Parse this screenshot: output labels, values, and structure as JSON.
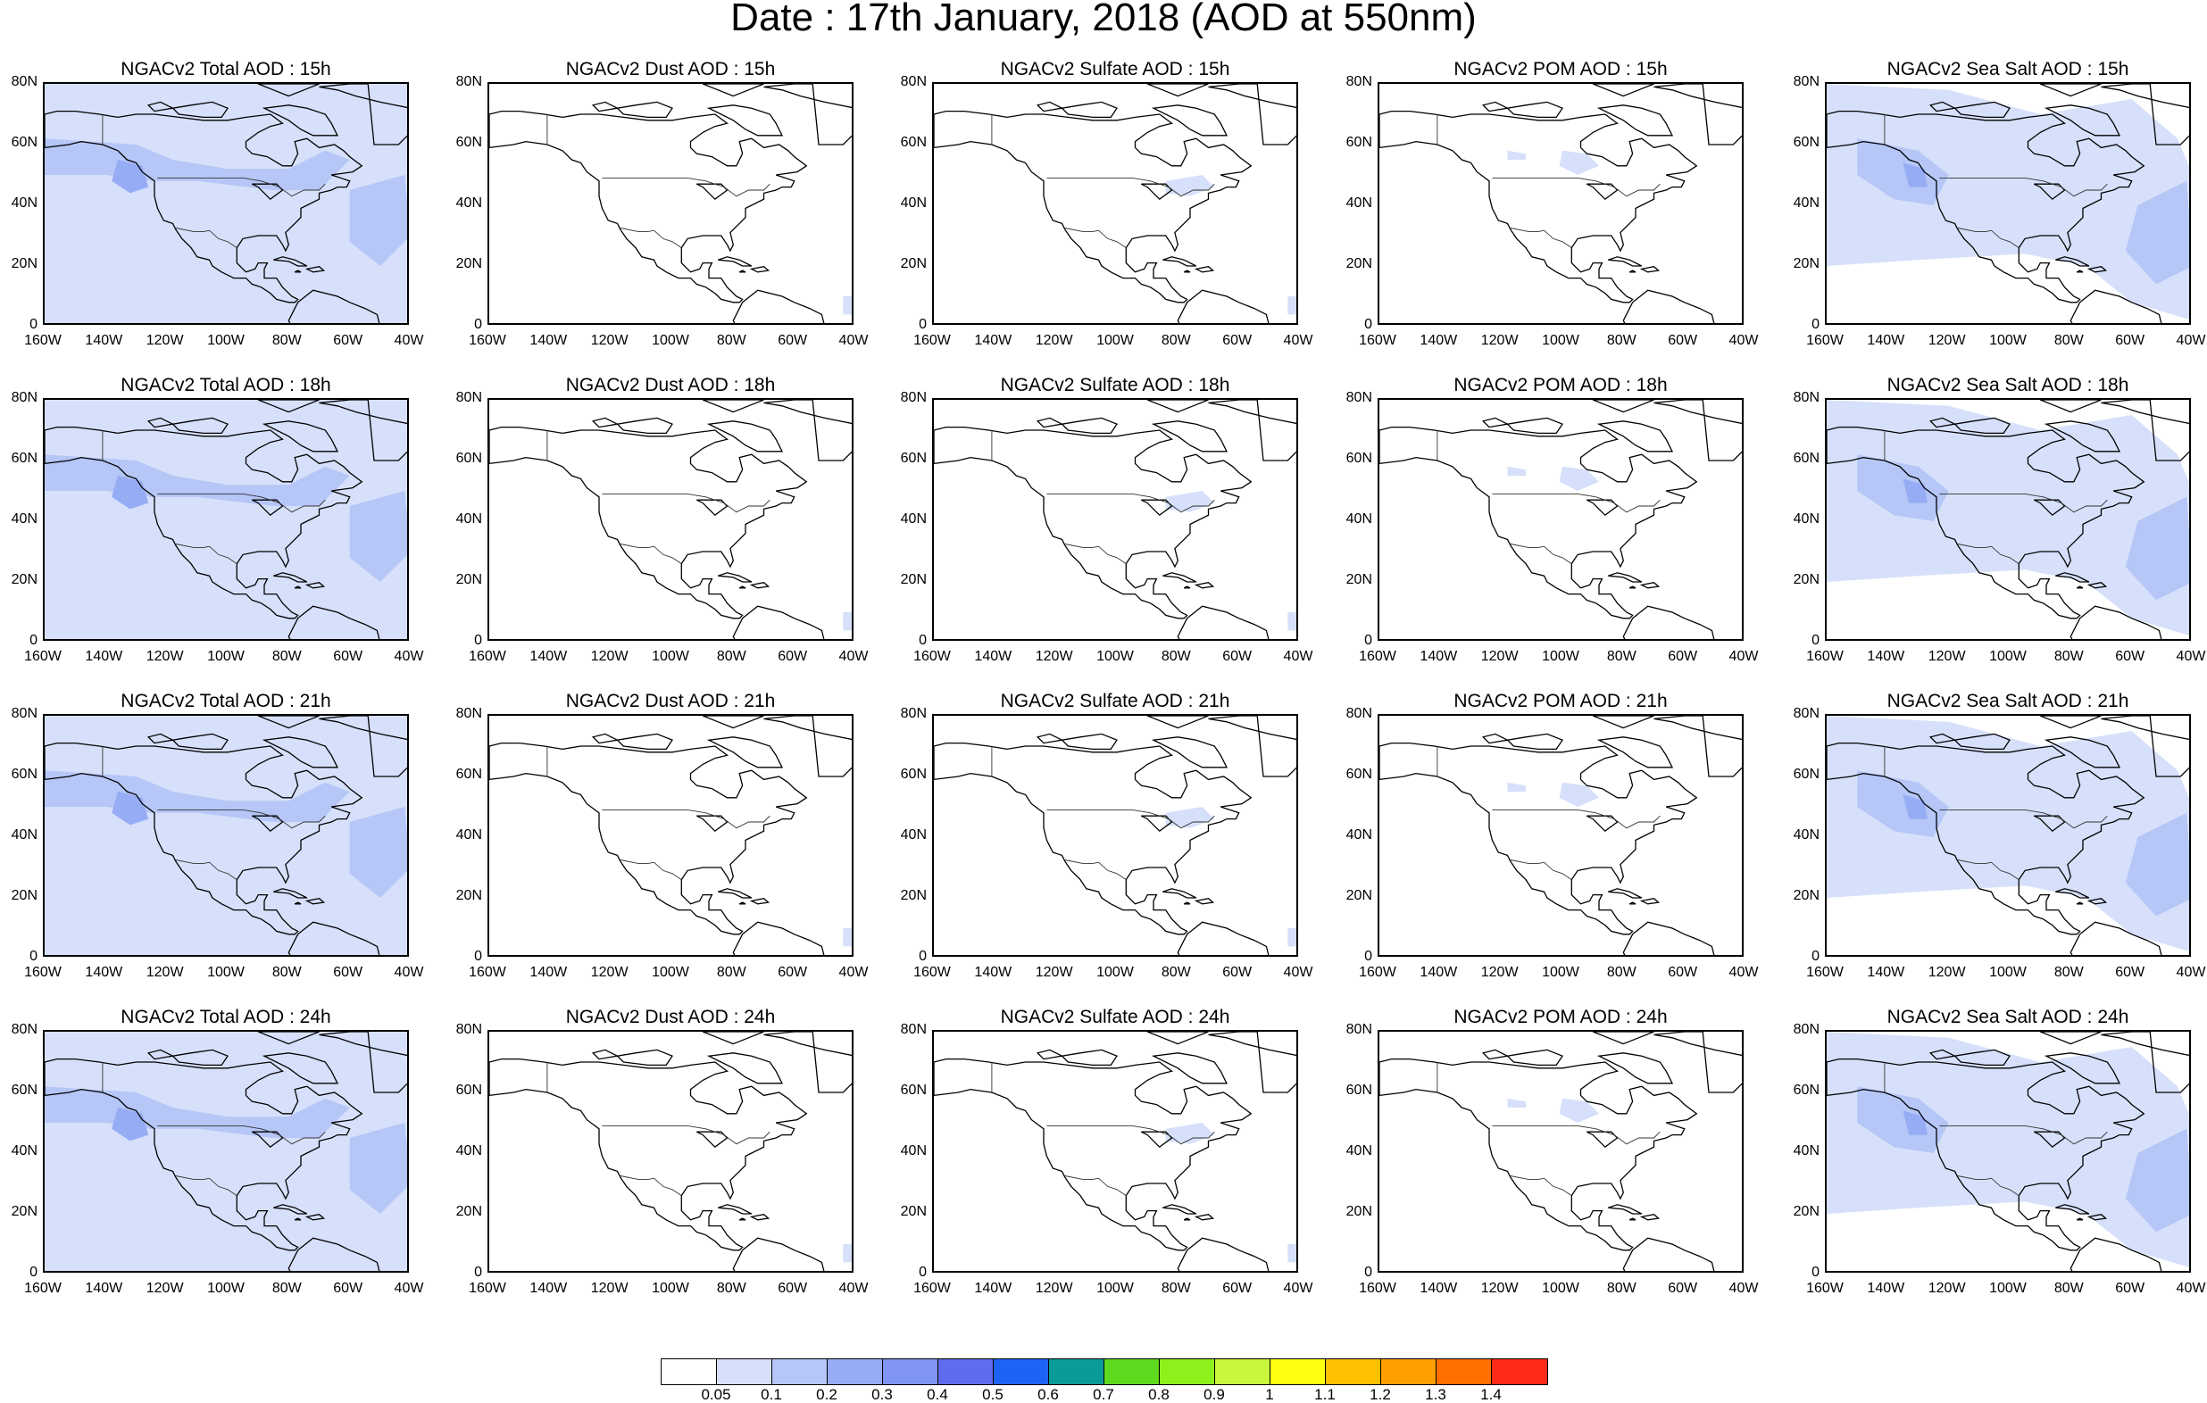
{
  "title": "Date : 17th January, 2018 (AOD at 550nm)",
  "panel_titles": [
    [
      "NGACv2 Total AOD : 15h",
      "NGACv2 Dust AOD : 15h",
      "NGACv2 Sulfate AOD : 15h",
      "NGACv2 POM AOD : 15h",
      "NGACv2 Sea Salt AOD : 15h"
    ],
    [
      "NGACv2 Total AOD : 18h",
      "NGACv2 Dust AOD : 18h",
      "NGACv2 Sulfate AOD : 18h",
      "NGACv2 POM AOD : 18h",
      "NGACv2 Sea Salt AOD : 18h"
    ],
    [
      "NGACv2 Total AOD : 21h",
      "NGACv2 Dust AOD : 21h",
      "NGACv2 Sulfate AOD : 21h",
      "NGACv2 POM AOD : 21h",
      "NGACv2 Sea Salt AOD : 21h"
    ],
    [
      "NGACv2 Total AOD : 24h",
      "NGACv2 Dust AOD : 24h",
      "NGACv2 Sulfate AOD : 24h",
      "NGACv2 POM AOD : 24h",
      "NGACv2 Sea Salt  AOD : 24h"
    ]
  ],
  "lat_labels": [
    "80N",
    "60N",
    "40N",
    "20N",
    "0"
  ],
  "lon_labels": [
    "160W",
    "140W",
    "120W",
    "100W",
    "80W",
    "60W",
    "40W"
  ],
  "colorbar": {
    "colors": [
      "#ffffff",
      "#d6e0fa",
      "#b5c6f7",
      "#96acf5",
      "#7f94f3",
      "#5f6cf0",
      "#1e63f5",
      "#0a9a9a",
      "#5ed91d",
      "#8ff01c",
      "#c8f73d",
      "#ffff10",
      "#ffc000",
      "#ffa000",
      "#ff7000",
      "#ff2a1a"
    ],
    "labels": [
      "0.05",
      "0.1",
      "0.2",
      "0.3",
      "0.4",
      "0.5",
      "0.6",
      "0.7",
      "0.8",
      "0.9",
      "1",
      "1.1",
      "1.2",
      "1.3",
      "1.4"
    ]
  },
  "shading_colors": {
    "light": "#d6e0fa",
    "medium": "#b5c6f7",
    "dark": "#96acf5"
  }
}
